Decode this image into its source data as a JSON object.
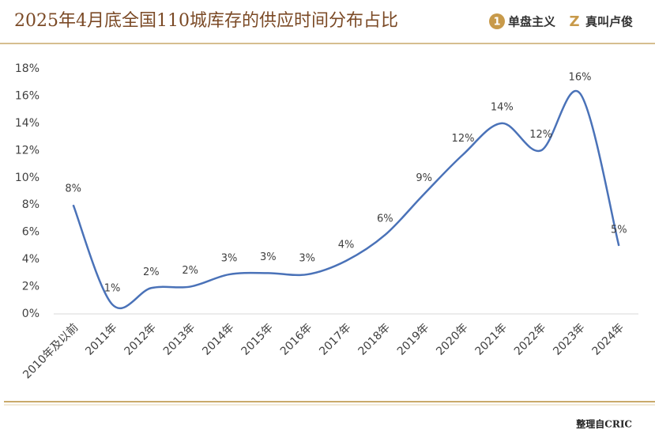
{
  "header": {
    "title": "2025年4月底全国110城库存的供应时间分布占比",
    "logos": [
      "单盘主义",
      "真叫卢俊"
    ]
  },
  "chart_data": {
    "type": "line",
    "categories": [
      "2010年及以前",
      "2011年",
      "2012年",
      "2013年",
      "2014年",
      "2015年",
      "2016年",
      "2017年",
      "2018年",
      "2019年",
      "2020年",
      "2021年",
      "2022年",
      "2023年",
      "2024年"
    ],
    "values": [
      8.0,
      0.7,
      1.9,
      2.0,
      2.9,
      3.0,
      2.9,
      3.9,
      5.8,
      8.8,
      11.7,
      14.0,
      12.0,
      16.2,
      5.0
    ],
    "value_labels": [
      "8%",
      "1%",
      "2%",
      "2%",
      "3%",
      "3%",
      "3%",
      "4%",
      "6%",
      "9%",
      "12%",
      "14%",
      "12%",
      "16%",
      "5%"
    ],
    "color": "#4a72b8",
    "smooth": true,
    "grid": false,
    "ylim": [
      0,
      18
    ],
    "yticks": [
      {
        "value": 0,
        "label": "0%"
      },
      {
        "value": 2,
        "label": "2%"
      },
      {
        "value": 4,
        "label": "4%"
      },
      {
        "value": 6,
        "label": "6%"
      },
      {
        "value": 8,
        "label": "8%"
      },
      {
        "value": 10,
        "label": "10%"
      },
      {
        "value": 12,
        "label": "12%"
      },
      {
        "value": 14,
        "label": "14%"
      },
      {
        "value": 16,
        "label": "16%"
      },
      {
        "value": 18,
        "label": "18%"
      }
    ]
  },
  "footer": {
    "source": "整理自CRIC"
  }
}
